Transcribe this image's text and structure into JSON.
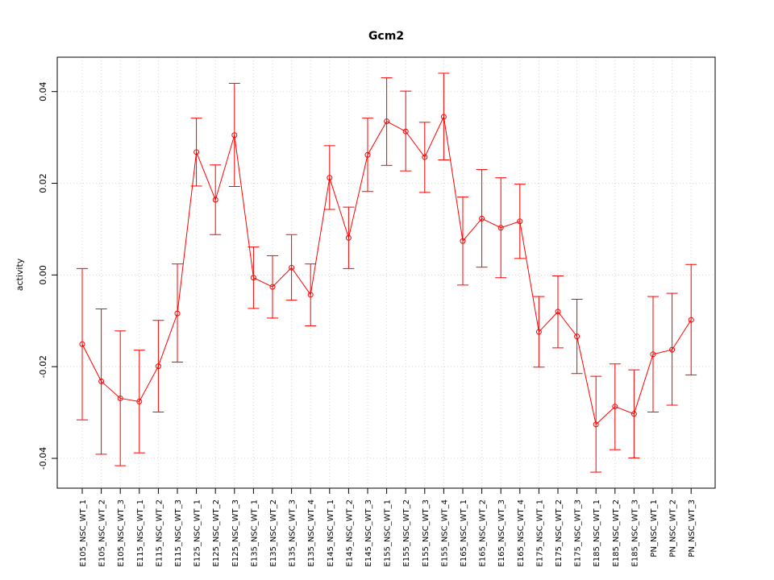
{
  "chart_data": {
    "type": "line",
    "title": "Gcm2",
    "xlabel": "",
    "ylabel": "activity",
    "ylim": [
      -0.0465,
      0.0475
    ],
    "yticks": [
      -0.04,
      -0.02,
      0.0,
      0.02,
      0.04
    ],
    "ytick_labels": [
      "-0.04",
      "-0.02",
      "0.00",
      "0.02",
      "0.04"
    ],
    "grid": true,
    "color": "#ff0000",
    "categories": [
      "E105_NSC_WT_1",
      "E105_NSC_WT_2",
      "E105_NSC_WT_3",
      "E115_NSC_WT_1",
      "E115_NSC_WT_2",
      "E115_NSC_WT_3",
      "E125_NSC_WT_1",
      "E125_NSC_WT_2",
      "E125_NSC_WT_3",
      "E135_NSC_WT_1",
      "E135_NSC_WT_2",
      "E135_NSC_WT_3",
      "E135_NSC_WT_4",
      "E145_NSC_WT_1",
      "E145_NSC_WT_2",
      "E145_NSC_WT_3",
      "E155_NSC_WT_1",
      "E155_NSC_WT_2",
      "E155_NSC_WT_3",
      "E155_NSC_WT_4",
      "E165_NSC_WT_1",
      "E165_NSC_WT_2",
      "E165_NSC_WT_3",
      "E165_NSC_WT_4",
      "E175_NSC_WT_1",
      "E175_NSC_WT_2",
      "E175_NSC_WT_3",
      "E185_NSC_WT_1",
      "E185_NSC_WT_2",
      "E185_NSC_WT_3",
      "PN_NSC_WT_1",
      "PN_NSC_WT_2",
      "PN_NSC_WT_3"
    ],
    "values": [
      -0.0151,
      -0.0232,
      -0.0269,
      -0.0276,
      -0.0199,
      -0.0084,
      0.0268,
      0.0164,
      0.0305,
      -0.0006,
      -0.0026,
      0.0016,
      -0.0043,
      0.0212,
      0.0081,
      0.0262,
      0.0335,
      0.0313,
      0.0257,
      0.0345,
      0.0074,
      0.0123,
      0.0103,
      0.0117,
      -0.0124,
      -0.008,
      -0.0134,
      -0.0326,
      -0.0287,
      -0.0303,
      -0.0173,
      -0.0163,
      -0.0098
    ],
    "lower": [
      -0.0316,
      -0.0391,
      -0.0416,
      -0.0388,
      -0.0299,
      -0.019,
      0.0194,
      0.0088,
      0.0193,
      -0.0073,
      -0.0094,
      -0.0055,
      -0.0111,
      0.0143,
      0.0014,
      0.0182,
      0.0239,
      0.0227,
      0.018,
      0.0251,
      -0.0022,
      0.0017,
      -0.0006,
      0.0036,
      -0.0201,
      -0.0159,
      -0.0215,
      -0.043,
      -0.0381,
      -0.0399,
      -0.0299,
      -0.0284,
      -0.0218
    ],
    "upper": [
      0.0014,
      -0.0074,
      -0.0122,
      -0.0164,
      -0.0099,
      0.0024,
      0.0342,
      0.024,
      0.0418,
      0.0061,
      0.0042,
      0.0088,
      0.0024,
      0.0282,
      0.0148,
      0.0342,
      0.043,
      0.0401,
      0.0333,
      0.044,
      0.017,
      0.023,
      0.0212,
      0.0198,
      -0.0047,
      -0.0002,
      -0.0053,
      -0.0221,
      -0.0194,
      -0.0207,
      -0.0047,
      -0.004,
      0.0023
    ]
  }
}
